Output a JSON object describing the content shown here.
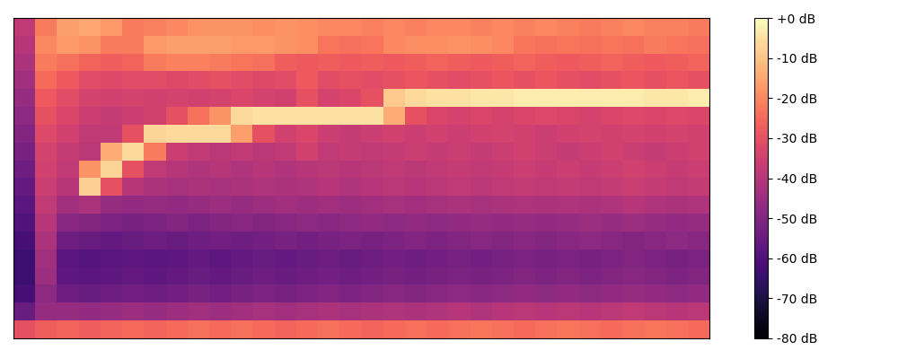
{
  "chart_data": {
    "type": "heatmap",
    "color": "magma",
    "tick_labels": false,
    "cells": [
      [
        -38,
        -22,
        -16,
        -15,
        -17,
        -22,
        -21,
        -20,
        -18,
        -18,
        -18,
        -19,
        -18,
        -19,
        -20,
        -20,
        -21,
        -20,
        -21,
        -20,
        -20,
        -21,
        -20,
        -21,
        -20,
        -21,
        -22,
        -21,
        -20,
        -21,
        -21,
        -22
      ],
      [
        -40,
        -20,
        -17,
        -18,
        -22,
        -22,
        -17,
        -16,
        -16,
        -16,
        -17,
        -17,
        -18,
        -19,
        -23,
        -24,
        -23,
        -20,
        -19,
        -19,
        -18,
        -19,
        -20,
        -23,
        -24,
        -23,
        -24,
        -23,
        -24,
        -22,
        -23,
        -24
      ],
      [
        -42,
        -22,
        -24,
        -26,
        -27,
        -26,
        -22,
        -21,
        -21,
        -22,
        -23,
        -24,
        -27,
        -28,
        -27,
        -28,
        -27,
        -28,
        -27,
        -26,
        -27,
        -28,
        -27,
        -26,
        -27,
        -28,
        -27,
        -26,
        -27,
        -28,
        -27,
        -26
      ],
      [
        -44,
        -25,
        -28,
        -31,
        -32,
        -31,
        -31,
        -32,
        -31,
        -30,
        -31,
        -32,
        -31,
        -28,
        -31,
        -30,
        -31,
        -30,
        -29,
        -30,
        -31,
        -30,
        -29,
        -30,
        -29,
        -30,
        -31,
        -30,
        -29,
        -30,
        -29,
        -30
      ],
      [
        -46,
        -28,
        -31,
        -34,
        -35,
        -34,
        -35,
        -34,
        -35,
        -34,
        -33,
        -34,
        -35,
        -30,
        -34,
        -33,
        -30,
        -9,
        -6,
        -5,
        -5,
        -4,
        -4,
        -3,
        -3,
        -3,
        -3,
        -3,
        -3,
        -4,
        -4,
        -3
      ],
      [
        -48,
        -30,
        -33,
        -36,
        -37,
        -36,
        -35,
        -30,
        -24,
        -18,
        -6,
        -5,
        -5,
        -5,
        -5,
        -5,
        -5,
        -14,
        -30,
        -33,
        -34,
        -33,
        -34,
        -33,
        -32,
        -33,
        -34,
        -33,
        -32,
        -33,
        -32,
        -33
      ],
      [
        -50,
        -32,
        -35,
        -38,
        -38,
        -30,
        -7,
        -6,
        -6,
        -6,
        -16,
        -30,
        -35,
        -33,
        -36,
        -37,
        -36,
        -35,
        -36,
        -35,
        -36,
        -35,
        -34,
        -35,
        -36,
        -35,
        -34,
        -35,
        -34,
        -35,
        -34,
        -35
      ],
      [
        -52,
        -34,
        -37,
        -39,
        -14,
        -6,
        -22,
        -36,
        -38,
        -39,
        -38,
        -39,
        -38,
        -35,
        -38,
        -37,
        -38,
        -37,
        -36,
        -37,
        -36,
        -37,
        -36,
        -35,
        -36,
        -37,
        -36,
        -35,
        -36,
        -37,
        -36,
        -35
      ],
      [
        -54,
        -35,
        -38,
        -18,
        -7,
        -30,
        -38,
        -40,
        -41,
        -40,
        -41,
        -40,
        -41,
        -40,
        -39,
        -40,
        -39,
        -38,
        -39,
        -38,
        -37,
        -38,
        -37,
        -36,
        -37,
        -36,
        -37,
        -36,
        -35,
        -36,
        -37,
        -36
      ],
      [
        -56,
        -36,
        -40,
        -8,
        -30,
        -40,
        -42,
        -43,
        -42,
        -43,
        -42,
        -41,
        -42,
        -41,
        -40,
        -41,
        -40,
        -39,
        -40,
        -39,
        -38,
        -39,
        -38,
        -37,
        -38,
        -37,
        -38,
        -37,
        -36,
        -37,
        -38,
        -37
      ],
      [
        -58,
        -38,
        -44,
        -42,
        -46,
        -47,
        -46,
        -47,
        -46,
        -45,
        -46,
        -45,
        -44,
        -45,
        -44,
        -45,
        -44,
        -43,
        -44,
        -43,
        -42,
        -43,
        -42,
        -41,
        -42,
        -41,
        -42,
        -41,
        -40,
        -41,
        -42,
        -41
      ],
      [
        -60,
        -40,
        -49,
        -50,
        -51,
        -52,
        -51,
        -50,
        -51,
        -50,
        -49,
        -50,
        -49,
        -48,
        -49,
        -48,
        -47,
        -48,
        -47,
        -48,
        -47,
        -46,
        -47,
        -46,
        -47,
        -46,
        -45,
        -46,
        -45,
        -46,
        -47,
        -46
      ],
      [
        -62,
        -42,
        -54,
        -55,
        -56,
        -55,
        -54,
        -55,
        -54,
        -53,
        -54,
        -53,
        -52,
        -53,
        -52,
        -51,
        -52,
        -51,
        -50,
        -51,
        -50,
        -49,
        -50,
        -49,
        -50,
        -49,
        -48,
        -49,
        -50,
        -49,
        -48,
        -49
      ],
      [
        -64,
        -44,
        -58,
        -59,
        -58,
        -57,
        -58,
        -57,
        -56,
        -57,
        -56,
        -55,
        -56,
        -55,
        -54,
        -55,
        -54,
        -53,
        -54,
        -53,
        -52,
        -53,
        -52,
        -51,
        -52,
        -51,
        -52,
        -51,
        -50,
        -51,
        -52,
        -51
      ],
      [
        -64,
        -45,
        -57,
        -58,
        -57,
        -56,
        -57,
        -56,
        -55,
        -56,
        -55,
        -54,
        -55,
        -54,
        -53,
        -54,
        -53,
        -52,
        -53,
        -52,
        -51,
        -52,
        -51,
        -50,
        -51,
        -50,
        -51,
        -50,
        -49,
        -50,
        -51,
        -50
      ],
      [
        -62,
        -48,
        -54,
        -55,
        -54,
        -53,
        -54,
        -53,
        -52,
        -53,
        -52,
        -51,
        -52,
        -51,
        -50,
        -51,
        -50,
        -49,
        -50,
        -49,
        -48,
        -49,
        -48,
        -47,
        -48,
        -47,
        -48,
        -47,
        -46,
        -47,
        -48,
        -47
      ],
      [
        -55,
        -46,
        -46,
        -47,
        -46,
        -45,
        -46,
        -45,
        -44,
        -45,
        -44,
        -43,
        -44,
        -43,
        -42,
        -43,
        -42,
        -41,
        -42,
        -41,
        -40,
        -41,
        -40,
        -39,
        -40,
        -39,
        -40,
        -39,
        -38,
        -39,
        -40,
        -39
      ],
      [
        -30,
        -27,
        -26,
        -27,
        -26,
        -25,
        -26,
        -25,
        -24,
        -25,
        -24,
        -25,
        -26,
        -25,
        -24,
        -25,
        -26,
        -25,
        -24,
        -25,
        -24,
        -23,
        -24,
        -25,
        -24,
        -23,
        -24,
        -25,
        -24,
        -23,
        -24,
        -25
      ]
    ],
    "colorbar": {
      "range": [
        -80,
        0
      ],
      "ticks": [
        {
          "value": 0,
          "label": "+0 dB"
        },
        {
          "value": -10,
          "label": "-10 dB"
        },
        {
          "value": -20,
          "label": "-20 dB"
        },
        {
          "value": -30,
          "label": "-30 dB"
        },
        {
          "value": -40,
          "label": "-40 dB"
        },
        {
          "value": -50,
          "label": "-50 dB"
        },
        {
          "value": -60,
          "label": "-60 dB"
        },
        {
          "value": -70,
          "label": "-70 dB"
        },
        {
          "value": -80,
          "label": "-80 dB"
        }
      ]
    }
  }
}
